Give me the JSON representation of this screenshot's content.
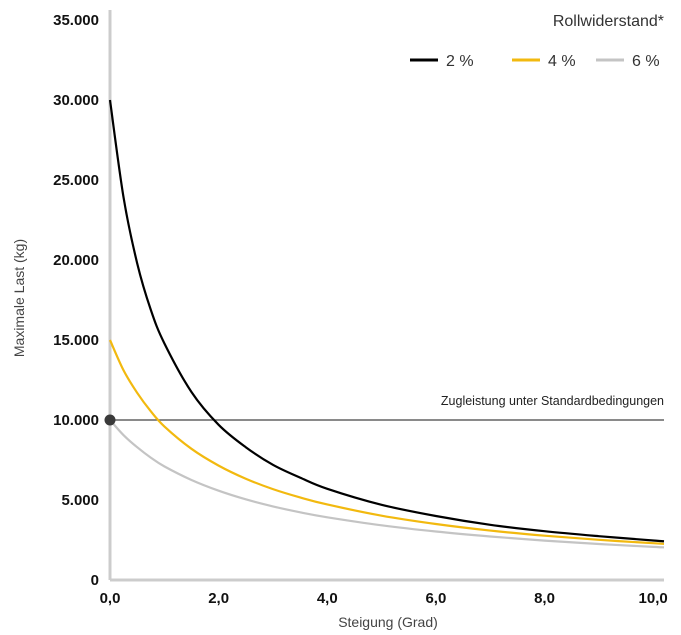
{
  "chart_data": {
    "type": "line",
    "xlabel": "Steigung (Grad)",
    "ylabel": "Maximale Last (kg)",
    "xlim": [
      0,
      10.2
    ],
    "ylim": [
      0,
      35000
    ],
    "x_ticks": [
      0,
      2,
      4,
      6,
      8,
      10
    ],
    "x_tick_labels": [
      "0,0",
      "2,0",
      "4,0",
      "6,0",
      "8,0",
      "10,0"
    ],
    "y_ticks": [
      0,
      5000,
      10000,
      15000,
      20000,
      25000,
      30000,
      35000
    ],
    "y_tick_labels": [
      "0",
      "5.000",
      "10.000",
      "15.000",
      "20.000",
      "25.000",
      "30.000",
      "35.000"
    ],
    "grid": false,
    "legend": {
      "title": "Rollwiderstand*",
      "placement": "top-right"
    },
    "x": [
      0,
      0.25,
      0.5,
      0.75,
      1,
      1.5,
      2,
      2.5,
      3,
      3.5,
      4,
      5,
      6,
      7,
      8,
      9,
      10,
      10.2
    ],
    "series": [
      {
        "name": "2 %",
        "color": "#000000",
        "values": [
          30000,
          23900,
          19800,
          16900,
          14800,
          11750,
          9700,
          8300,
          7200,
          6400,
          5700,
          4700,
          4000,
          3450,
          3050,
          2740,
          2470,
          2420
        ]
      },
      {
        "name": "4 %",
        "color": "#f2b90f",
        "values": [
          15000,
          13100,
          11700,
          10550,
          9600,
          8200,
          7150,
          6330,
          5680,
          5160,
          4720,
          4020,
          3500,
          3090,
          2770,
          2510,
          2300,
          2260
        ]
      },
      {
        "name": "6 %",
        "color": "#c4c4c4",
        "values": [
          10000,
          9050,
          8300,
          7650,
          7100,
          6250,
          5580,
          5040,
          4600,
          4230,
          3920,
          3420,
          3030,
          2720,
          2460,
          2250,
          2070,
          2040
        ]
      }
    ],
    "reference_line": {
      "y": 10000,
      "label": "Zugleistung unter Standardbedingungen",
      "color": "#444444"
    },
    "marker": {
      "x": 0,
      "y": 10000,
      "color": "#3a3a3a"
    },
    "axis_color": "#cccccc"
  }
}
